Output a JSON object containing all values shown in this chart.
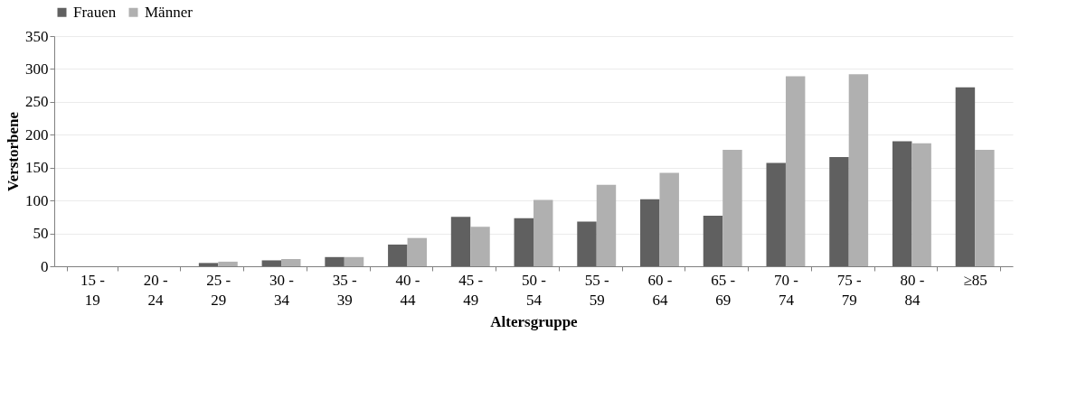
{
  "chart_data": {
    "type": "bar",
    "xlabel": "Altersgruppe",
    "ylabel": "Verstorbene",
    "categories": [
      "15 - 19",
      "20 - 24",
      "25 - 29",
      "30 - 34",
      "35 - 39",
      "40 - 44",
      "45 - 49",
      "50 - 54",
      "55 - 59",
      "60 - 64",
      "65 - 69",
      "70 - 74",
      "75 - 79",
      "80 - 84",
      "≥85"
    ],
    "series": [
      {
        "name": "Frauen",
        "color": "#606060",
        "values": [
          0,
          0,
          5,
          9,
          14,
          33,
          75,
          73,
          68,
          102,
          77,
          157,
          166,
          190,
          272
        ]
      },
      {
        "name": "Männer",
        "color": "#b0b0b0",
        "values": [
          0,
          0,
          7,
          11,
          14,
          43,
          60,
          101,
          124,
          142,
          177,
          289,
          292,
          187,
          177
        ]
      }
    ],
    "ylim": [
      0,
      350
    ],
    "yticks": [
      0,
      50,
      100,
      150,
      200,
      250,
      300,
      350
    ],
    "grid": "y",
    "legend": "top"
  }
}
